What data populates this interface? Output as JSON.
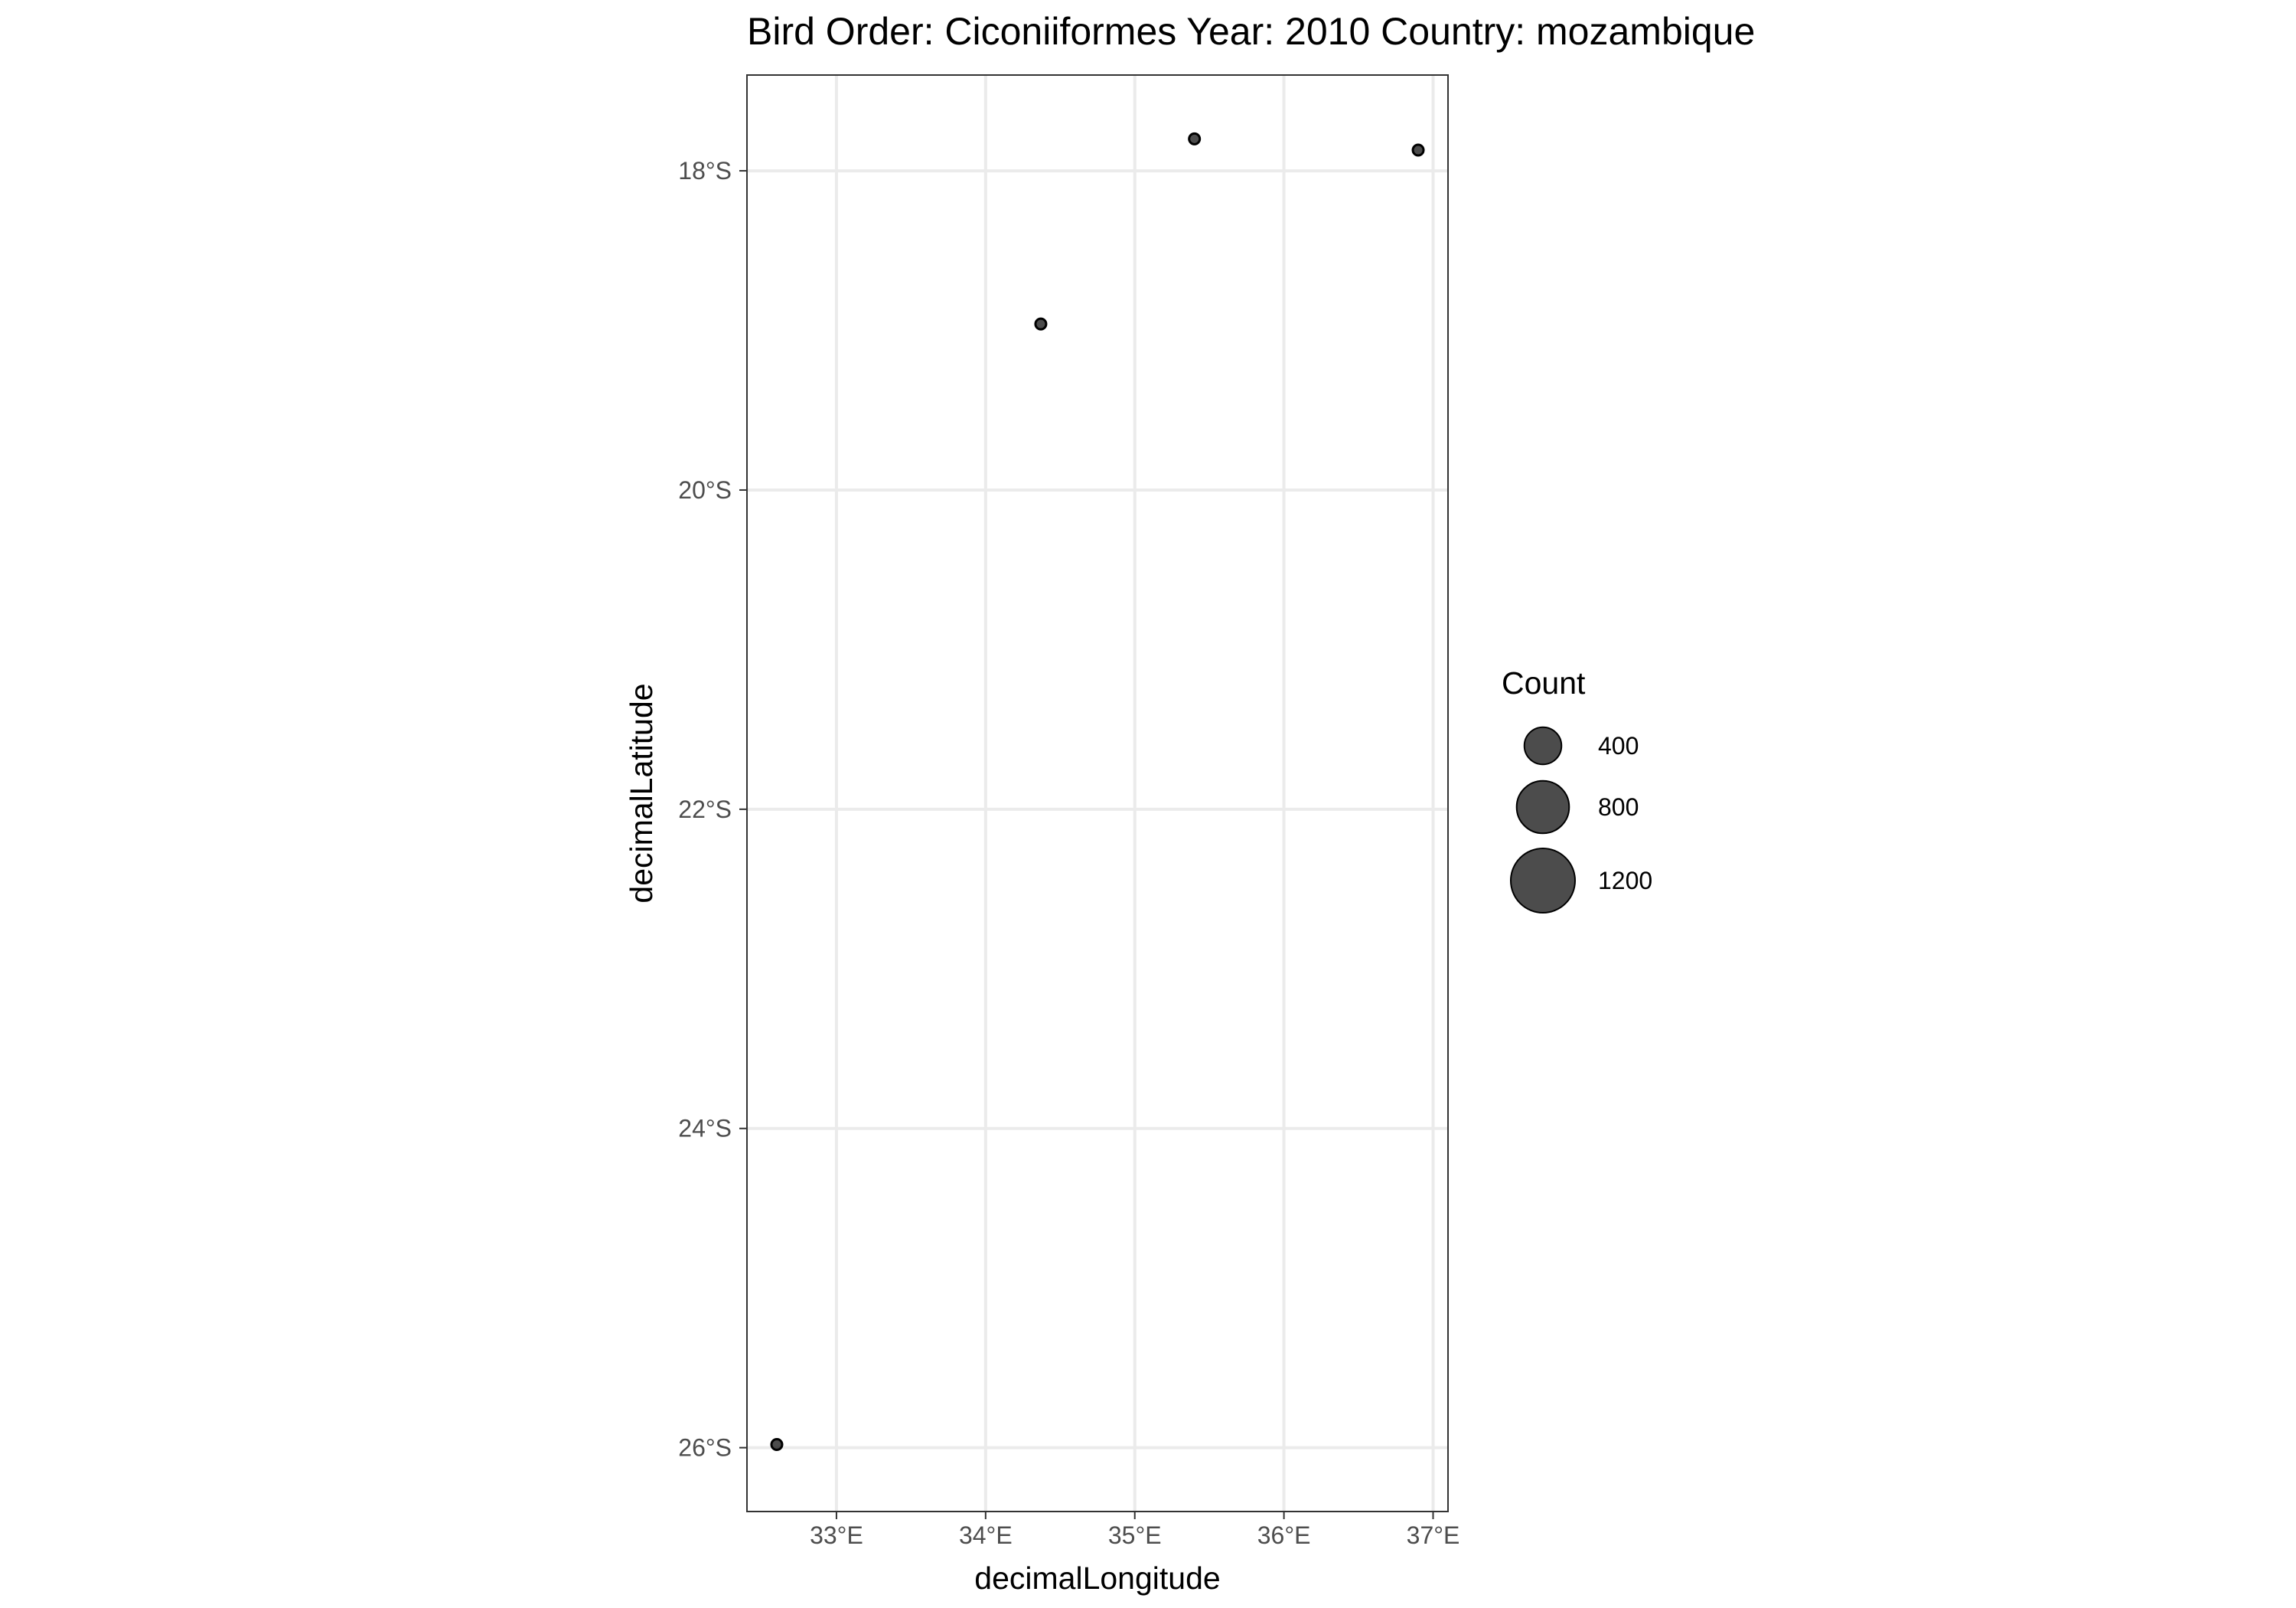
{
  "chart_data": {
    "type": "scatter",
    "title": "Bird Order: Ciconiiformes Year: 2010 Country: mozambique",
    "xlabel": "decimalLongitude",
    "ylabel": "decimalLatitude",
    "xlim": [
      32.4,
      37.1
    ],
    "ylim": [
      -26.4,
      -17.4
    ],
    "x_ticks": [
      {
        "value": 33,
        "label": "33°E"
      },
      {
        "value": 34,
        "label": "34°E"
      },
      {
        "value": 35,
        "label": "35°E"
      },
      {
        "value": 36,
        "label": "36°E"
      },
      {
        "value": 37,
        "label": "37°E"
      }
    ],
    "y_ticks": [
      {
        "value": -18,
        "label": "18°S"
      },
      {
        "value": -20,
        "label": "20°S"
      },
      {
        "value": -22,
        "label": "22°S"
      },
      {
        "value": -24,
        "label": "24°S"
      },
      {
        "value": -26,
        "label": "26°S"
      }
    ],
    "grid": true,
    "points": [
      {
        "lon": 35.4,
        "lat": -17.8,
        "count": 20
      },
      {
        "lon": 36.9,
        "lat": -17.87,
        "count": 5
      },
      {
        "lon": 34.37,
        "lat": -18.96,
        "count": 2
      },
      {
        "lon": 32.6,
        "lat": -25.98,
        "count": 5
      }
    ],
    "size_legend": {
      "title": "Count",
      "placement": "right",
      "entries": [
        {
          "value": 400,
          "label": "400"
        },
        {
          "value": 800,
          "label": "800"
        },
        {
          "value": 1200,
          "label": "1200"
        }
      ]
    },
    "point_color": "#000000",
    "point_fill_opacity": 0.7,
    "grid_color": "#ebebeb",
    "panel_border_color": "#333333"
  }
}
